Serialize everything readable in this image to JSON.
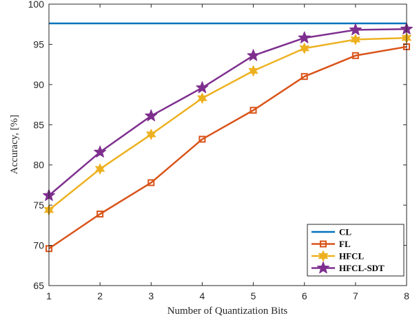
{
  "chart_data": {
    "type": "line",
    "title": "",
    "xlabel": "Number of Quantization Bits",
    "ylabel": "Accuracy, [%]",
    "xlim": [
      1,
      8
    ],
    "ylim": [
      65,
      100
    ],
    "x_ticks": [
      "1",
      "2",
      "3",
      "4",
      "5",
      "6",
      "7",
      "8"
    ],
    "y_ticks": [
      "65",
      "70",
      "75",
      "80",
      "85",
      "90",
      "95",
      "100"
    ],
    "grid": false,
    "legend_position": "bottom-right",
    "x": [
      1,
      2,
      3,
      4,
      5,
      6,
      7,
      8
    ],
    "series": [
      {
        "name": "CL",
        "color": "#0072BD",
        "marker": "none",
        "values": [
          97.6,
          97.6,
          97.6,
          97.6,
          97.6,
          97.6,
          97.6,
          97.6
        ]
      },
      {
        "name": "FL",
        "color": "#D95319",
        "marker": "square",
        "values": [
          69.6,
          73.9,
          77.8,
          83.2,
          86.8,
          91.0,
          93.6,
          94.7
        ]
      },
      {
        "name": "HFCL",
        "color": "#EDB120",
        "marker": "star6",
        "values": [
          74.4,
          79.5,
          83.8,
          88.3,
          91.7,
          94.5,
          95.6,
          95.8
        ]
      },
      {
        "name": "HFCL-SDT",
        "color": "#7E2F8E",
        "marker": "star5",
        "values": [
          76.2,
          81.6,
          86.1,
          89.6,
          93.6,
          95.8,
          96.8,
          96.9
        ]
      }
    ]
  }
}
